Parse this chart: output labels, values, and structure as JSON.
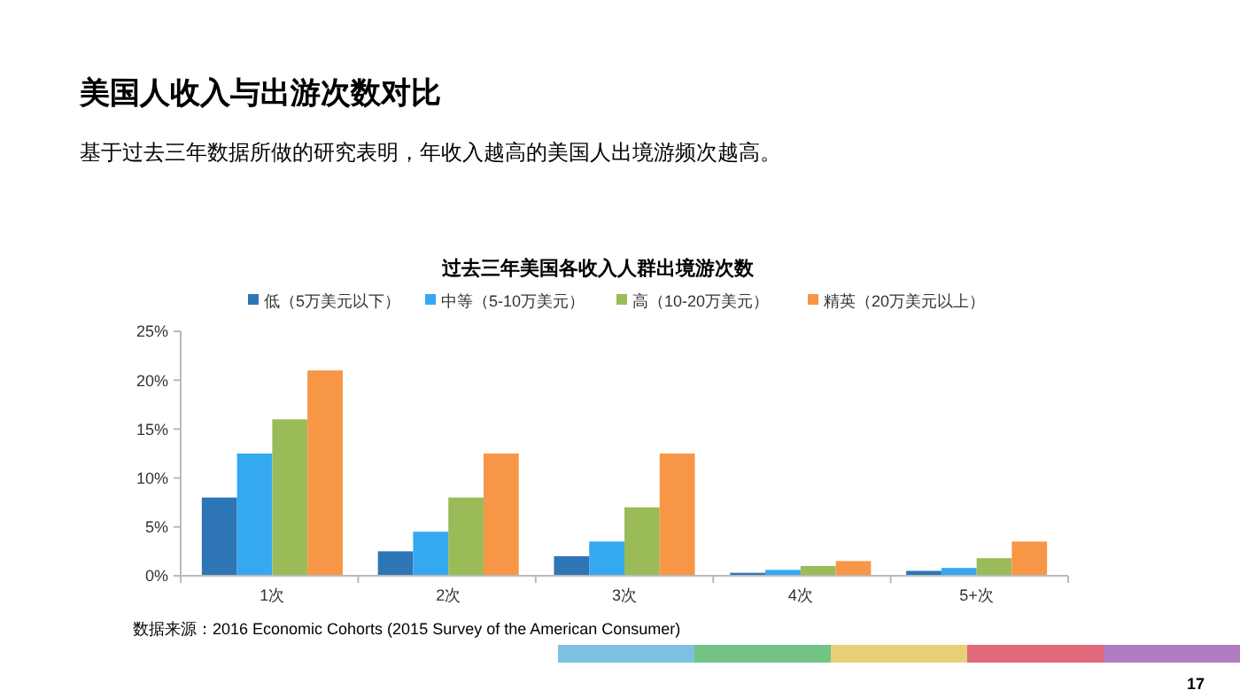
{
  "chart_data": {
    "type": "bar",
    "title": "过去三年美国各收入人群出境游次数",
    "annotations": [
      "美国人收入与出游次数对比",
      "基于过去三年数据所做的研究表明，年收入越高的美国人出境游频次越高。",
      "数据来源：2016 Economic Cohorts (2015 Survey of the American Consumer)",
      "17"
    ],
    "categories": [
      "1次",
      "2次",
      "3次",
      "4次",
      "5+次"
    ],
    "series": [
      {
        "name": "低（5万美元以下）",
        "color": "#2e75b6",
        "values": [
          8,
          2.5,
          2,
          0.3,
          0.5
        ]
      },
      {
        "name": "中等（5-10万美元）",
        "color": "#35a8f2",
        "values": [
          12.5,
          4.5,
          3.5,
          0.6,
          0.8
        ]
      },
      {
        "name": "高（10-20万美元）",
        "color": "#9bbb59",
        "values": [
          16,
          8,
          7,
          1,
          1.8
        ]
      },
      {
        "name": "精英（20万美元以上）",
        "color": "#f79646",
        "values": [
          21,
          12.5,
          12.5,
          1.5,
          3.5
        ]
      }
    ],
    "ylim": [
      0,
      25
    ],
    "yticks": [
      {
        "value": 0,
        "label": "0%"
      },
      {
        "value": 5,
        "label": "5%"
      },
      {
        "value": 10,
        "label": "10%"
      },
      {
        "value": 15,
        "label": "15%"
      },
      {
        "value": 20,
        "label": "20%"
      },
      {
        "value": 25,
        "label": "25%"
      }
    ],
    "grid": false,
    "legend": "top"
  }
}
